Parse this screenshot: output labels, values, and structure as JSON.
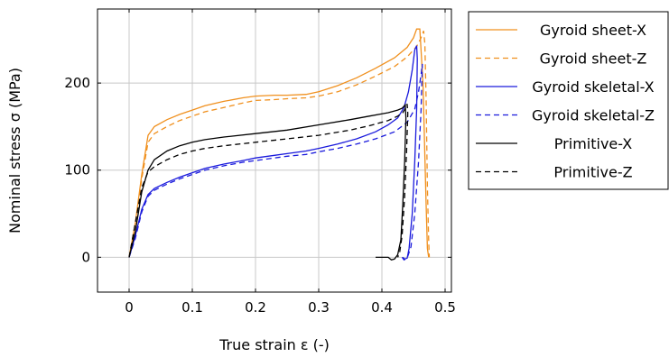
{
  "chart_data": {
    "type": "line",
    "title": "",
    "xlabel": "True strain ε (-)",
    "ylabel": "Nominal stress σ (MPa)",
    "xlim": [
      -0.05,
      0.51
    ],
    "ylim": [
      -40,
      285
    ],
    "xticks": [
      0,
      0.1,
      0.2,
      0.3,
      0.4,
      0.5
    ],
    "xtick_labels": [
      "0",
      "0.1",
      "0.2",
      "0.3",
      "0.4",
      "0.5"
    ],
    "yticks": [
      0,
      100,
      200
    ],
    "ytick_labels": [
      "0",
      "100",
      "200"
    ],
    "grid": true,
    "legend_position": "outside-right",
    "series": [
      {
        "name": "Gyroid sheet-X",
        "color": "#f0901e",
        "dash": "solid",
        "points": [
          [
            0,
            0
          ],
          [
            0.01,
            40
          ],
          [
            0.02,
            95
          ],
          [
            0.03,
            140
          ],
          [
            0.04,
            150
          ],
          [
            0.06,
            158
          ],
          [
            0.08,
            164
          ],
          [
            0.1,
            169
          ],
          [
            0.12,
            174
          ],
          [
            0.15,
            179
          ],
          [
            0.18,
            183
          ],
          [
            0.2,
            185
          ],
          [
            0.23,
            186
          ],
          [
            0.25,
            186
          ],
          [
            0.28,
            187
          ],
          [
            0.3,
            190
          ],
          [
            0.33,
            197
          ],
          [
            0.36,
            206
          ],
          [
            0.39,
            217
          ],
          [
            0.42,
            229
          ],
          [
            0.44,
            241
          ],
          [
            0.45,
            252
          ],
          [
            0.455,
            262
          ],
          [
            0.46,
            262
          ],
          [
            0.465,
            200
          ],
          [
            0.47,
            60
          ],
          [
            0.472,
            10
          ],
          [
            0.474,
            0
          ]
        ]
      },
      {
        "name": "Gyroid sheet-Z",
        "color": "#f0901e",
        "dash": "dashed",
        "points": [
          [
            0,
            0
          ],
          [
            0.01,
            40
          ],
          [
            0.02,
            90
          ],
          [
            0.03,
            132
          ],
          [
            0.04,
            142
          ],
          [
            0.06,
            150
          ],
          [
            0.08,
            157
          ],
          [
            0.1,
            162
          ],
          [
            0.12,
            167
          ],
          [
            0.15,
            172
          ],
          [
            0.18,
            177
          ],
          [
            0.2,
            180
          ],
          [
            0.23,
            181
          ],
          [
            0.25,
            182
          ],
          [
            0.28,
            183
          ],
          [
            0.3,
            185
          ],
          [
            0.33,
            190
          ],
          [
            0.36,
            198
          ],
          [
            0.39,
            208
          ],
          [
            0.42,
            219
          ],
          [
            0.44,
            230
          ],
          [
            0.455,
            242
          ],
          [
            0.462,
            252
          ],
          [
            0.466,
            260
          ],
          [
            0.468,
            245
          ],
          [
            0.47,
            180
          ],
          [
            0.472,
            80
          ],
          [
            0.474,
            20
          ],
          [
            0.475,
            0
          ]
        ]
      },
      {
        "name": "Gyroid skeletal-X",
        "color": "#1a1adc",
        "dash": "solid",
        "points": [
          [
            0,
            0
          ],
          [
            0.01,
            25
          ],
          [
            0.02,
            55
          ],
          [
            0.03,
            72
          ],
          [
            0.04,
            79
          ],
          [
            0.06,
            86
          ],
          [
            0.08,
            92
          ],
          [
            0.1,
            97
          ],
          [
            0.12,
            102
          ],
          [
            0.15,
            107
          ],
          [
            0.18,
            111
          ],
          [
            0.2,
            114
          ],
          [
            0.23,
            117
          ],
          [
            0.25,
            119
          ],
          [
            0.28,
            122
          ],
          [
            0.3,
            125
          ],
          [
            0.33,
            130
          ],
          [
            0.36,
            136
          ],
          [
            0.39,
            144
          ],
          [
            0.41,
            152
          ],
          [
            0.425,
            160
          ],
          [
            0.435,
            172
          ],
          [
            0.442,
            190
          ],
          [
            0.448,
            215
          ],
          [
            0.452,
            238
          ],
          [
            0.455,
            243
          ],
          [
            0.456,
            228
          ],
          [
            0.455,
            170
          ],
          [
            0.452,
            110
          ],
          [
            0.448,
            50
          ],
          [
            0.443,
            10
          ],
          [
            0.44,
            -1
          ],
          [
            0.436,
            -2
          ],
          [
            0.433,
            0
          ]
        ]
      },
      {
        "name": "Gyroid skeletal-Z",
        "color": "#1a1adc",
        "dash": "dashed",
        "points": [
          [
            0,
            0
          ],
          [
            0.01,
            22
          ],
          [
            0.02,
            52
          ],
          [
            0.03,
            70
          ],
          [
            0.04,
            77
          ],
          [
            0.06,
            84
          ],
          [
            0.08,
            90
          ],
          [
            0.1,
            95
          ],
          [
            0.12,
            100
          ],
          [
            0.15,
            105
          ],
          [
            0.18,
            109
          ],
          [
            0.2,
            111
          ],
          [
            0.23,
            114
          ],
          [
            0.25,
            116
          ],
          [
            0.28,
            118
          ],
          [
            0.3,
            121
          ],
          [
            0.33,
            125
          ],
          [
            0.36,
            130
          ],
          [
            0.39,
            136
          ],
          [
            0.42,
            144
          ],
          [
            0.44,
            155
          ],
          [
            0.452,
            170
          ],
          [
            0.458,
            190
          ],
          [
            0.462,
            210
          ],
          [
            0.464,
            222
          ],
          [
            0.462,
            170
          ],
          [
            0.458,
            110
          ],
          [
            0.452,
            50
          ],
          [
            0.446,
            12
          ],
          [
            0.44,
            -1
          ],
          [
            0.435,
            -3
          ],
          [
            0.432,
            0
          ]
        ]
      },
      {
        "name": "Primitive-X",
        "color": "#000000",
        "dash": "solid",
        "points": [
          [
            0,
            0
          ],
          [
            0.01,
            30
          ],
          [
            0.02,
            75
          ],
          [
            0.03,
            100
          ],
          [
            0.04,
            112
          ],
          [
            0.06,
            122
          ],
          [
            0.08,
            128
          ],
          [
            0.1,
            132
          ],
          [
            0.12,
            135
          ],
          [
            0.15,
            138
          ],
          [
            0.2,
            142
          ],
          [
            0.25,
            146
          ],
          [
            0.3,
            152
          ],
          [
            0.35,
            158
          ],
          [
            0.38,
            162
          ],
          [
            0.41,
            166
          ],
          [
            0.425,
            169
          ],
          [
            0.432,
            171
          ],
          [
            0.437,
            175
          ],
          [
            0.438,
            160
          ],
          [
            0.436,
            110
          ],
          [
            0.433,
            60
          ],
          [
            0.43,
            20
          ],
          [
            0.425,
            3
          ],
          [
            0.42,
            -2
          ],
          [
            0.415,
            -3
          ],
          [
            0.41,
            0
          ],
          [
            0.4,
            0
          ],
          [
            0.39,
            0
          ]
        ]
      },
      {
        "name": "Primitive-Z",
        "color": "#000000",
        "dash": "dashed",
        "points": [
          [
            0,
            0
          ],
          [
            0.01,
            40
          ],
          [
            0.02,
            80
          ],
          [
            0.03,
            98
          ],
          [
            0.04,
            104
          ],
          [
            0.06,
            112
          ],
          [
            0.08,
            118
          ],
          [
            0.1,
            122
          ],
          [
            0.12,
            125
          ],
          [
            0.15,
            128
          ],
          [
            0.2,
            132
          ],
          [
            0.25,
            136
          ],
          [
            0.3,
            140
          ],
          [
            0.35,
            146
          ],
          [
            0.38,
            151
          ],
          [
            0.41,
            157
          ],
          [
            0.425,
            162
          ],
          [
            0.433,
            166
          ],
          [
            0.438,
            172
          ],
          [
            0.44,
            176
          ],
          [
            0.441,
            165
          ],
          [
            0.439,
            120
          ],
          [
            0.436,
            70
          ],
          [
            0.432,
            25
          ],
          [
            0.428,
            5
          ],
          [
            0.425,
            0
          ]
        ]
      }
    ]
  }
}
